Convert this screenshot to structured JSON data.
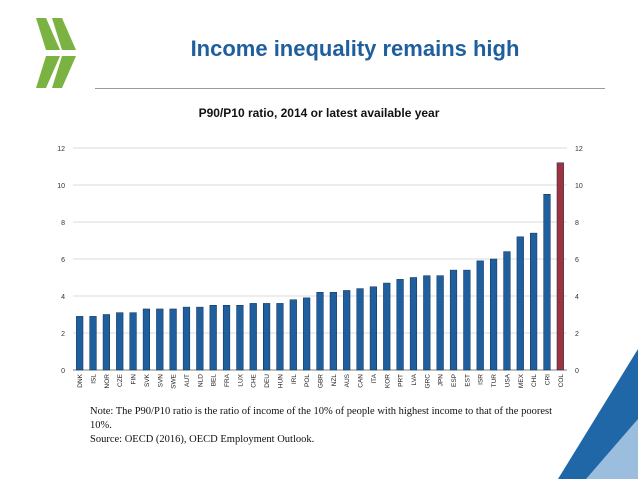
{
  "slide": {
    "title": "Income inequality remains high"
  },
  "note": {
    "line1": "Note: The P90/P10 ratio is the ratio of income of the 10% of people with highest income to that of the poorest 10%.",
    "line2": "Source: OECD (2016), OECD Employment Outlook."
  },
  "colors": {
    "title": "#1f5f9e",
    "bar": "#1f5f9e",
    "highlight": "#a0313f",
    "logo_green": "#7ab342",
    "corner_blue": "#1f67a6"
  },
  "chart_data": {
    "type": "bar",
    "title": "P90/P10 ratio, 2014 or latest available year",
    "xlabel": "",
    "ylabel": "",
    "ylim": [
      0,
      12
    ],
    "yticks": [
      0,
      2,
      4,
      6,
      8,
      10,
      12
    ],
    "secondary_y_axis": true,
    "grid": true,
    "legend": "none",
    "highlight_category": "COL",
    "categories": [
      "DNK",
      "ISL",
      "NOR",
      "CZE",
      "FIN",
      "SVK",
      "SVN",
      "SWE",
      "AUT",
      "NLD",
      "BEL",
      "FRA",
      "LUX",
      "CHE",
      "DEU",
      "HUN",
      "IRL",
      "POL",
      "GBR",
      "NZL",
      "AUS",
      "CAN",
      "ITA",
      "KOR",
      "PRT",
      "LVA",
      "GRC",
      "JPN",
      "ESP",
      "EST",
      "ISR",
      "TUR",
      "USA",
      "MEX",
      "CHL",
      "CRI",
      "COL"
    ],
    "values": [
      2.9,
      2.9,
      3.0,
      3.1,
      3.1,
      3.3,
      3.3,
      3.3,
      3.4,
      3.4,
      3.5,
      3.5,
      3.5,
      3.6,
      3.6,
      3.6,
      3.8,
      3.9,
      4.2,
      4.2,
      4.3,
      4.4,
      4.5,
      4.7,
      4.9,
      5.0,
      5.1,
      5.1,
      5.4,
      5.4,
      5.9,
      6.0,
      6.4,
      7.2,
      7.4,
      9.5,
      11.2
    ]
  }
}
